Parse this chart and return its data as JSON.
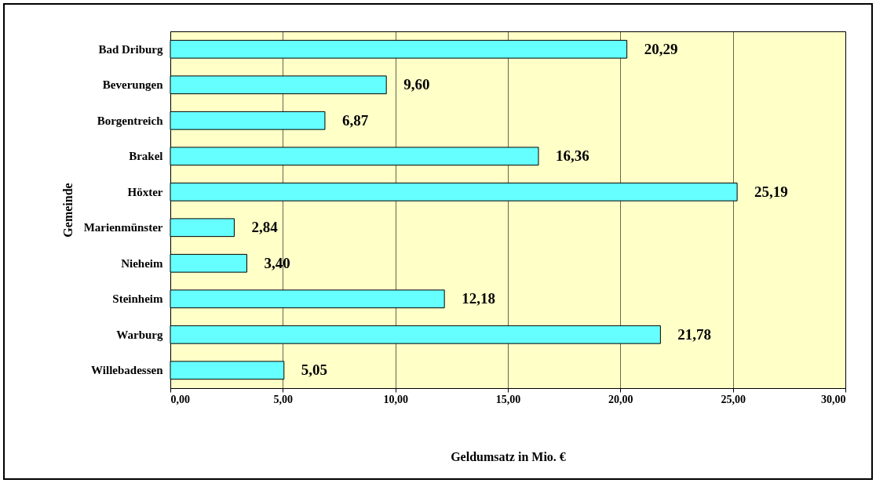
{
  "chart_data": {
    "type": "bar",
    "orientation": "horizontal",
    "xlabel": "Geldumsatz in Mio. €",
    "ylabel": "Gemeinde",
    "categories": [
      "Bad Driburg",
      "Beverungen",
      "Borgentreich",
      "Brakel",
      "Höxter",
      "Marienmünster",
      "Nieheim",
      "Steinheim",
      "Warburg",
      "Willebadessen"
    ],
    "values": [
      20.29,
      9.6,
      6.87,
      16.36,
      25.19,
      2.84,
      3.4,
      12.18,
      21.78,
      5.05
    ],
    "value_labels": [
      "20,29",
      "9,60",
      "6,87",
      "16,36",
      "25,19",
      "2,84",
      "3,40",
      "12,18",
      "21,78",
      "5,05"
    ],
    "color": "#66ffff",
    "xlim": [
      0,
      30
    ],
    "xticks": [
      {
        "value": 0,
        "label": "0,00"
      },
      {
        "value": 5,
        "label": "5,00"
      },
      {
        "value": 10,
        "label": "10,00"
      },
      {
        "value": 15,
        "label": "15,00"
      },
      {
        "value": 20,
        "label": "20,00"
      },
      {
        "value": 25,
        "label": "25,00"
      },
      {
        "value": 30,
        "label": "30,00"
      }
    ],
    "grid": "x"
  }
}
